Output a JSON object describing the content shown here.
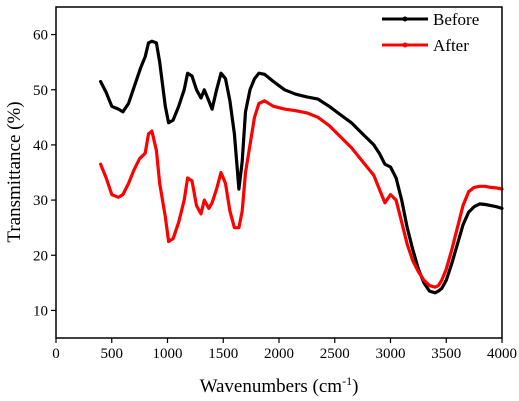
{
  "chart_data": {
    "type": "line",
    "xlabel": "Wavenumbers (cm",
    "xlabel_sup": "-1",
    "xlabel_tail": ")",
    "ylabel": "Transmittance (%)",
    "xlim": [
      0,
      4000
    ],
    "ylim": [
      5,
      65
    ],
    "xticks": [
      0,
      500,
      1000,
      1500,
      2000,
      2500,
      3000,
      3500,
      4000
    ],
    "yticks": [
      10,
      20,
      30,
      40,
      50,
      60
    ],
    "grid": false,
    "legend_position": "top-right",
    "series": [
      {
        "name": "Before",
        "color": "#000000",
        "x": [
          400,
          450,
          500,
          560,
          600,
          650,
          700,
          760,
          800,
          830,
          860,
          900,
          930,
          980,
          1010,
          1050,
          1100,
          1150,
          1180,
          1220,
          1260,
          1300,
          1330,
          1370,
          1400,
          1440,
          1480,
          1520,
          1560,
          1600,
          1640,
          1670,
          1700,
          1740,
          1780,
          1820,
          1870,
          1950,
          2050,
          2150,
          2250,
          2350,
          2450,
          2550,
          2650,
          2750,
          2850,
          2900,
          2950,
          3000,
          3050,
          3100,
          3150,
          3200,
          3250,
          3300,
          3350,
          3400,
          3430,
          3460,
          3500,
          3550,
          3600,
          3650,
          3700,
          3750,
          3800,
          3850,
          3900,
          3950,
          4000
        ],
        "values": [
          51.5,
          49.5,
          47.0,
          46.5,
          46.0,
          47.5,
          50.5,
          54.0,
          56.0,
          58.5,
          58.8,
          58.5,
          55.0,
          47.0,
          44.0,
          44.5,
          47.0,
          50.0,
          53.0,
          52.5,
          50.0,
          48.5,
          50.0,
          48.0,
          46.5,
          50.0,
          53.0,
          52.0,
          48.0,
          42.0,
          32.0,
          37.0,
          46.0,
          50.0,
          52.0,
          53.0,
          52.8,
          51.5,
          50.0,
          49.2,
          48.7,
          48.3,
          47.0,
          45.5,
          44.0,
          42.0,
          40.0,
          38.5,
          36.5,
          36.0,
          34.0,
          30.0,
          25.0,
          21.0,
          17.5,
          15.0,
          13.5,
          13.2,
          13.5,
          14.0,
          15.5,
          18.5,
          22.0,
          25.5,
          27.8,
          28.8,
          29.3,
          29.2,
          29.0,
          28.8,
          28.5
        ]
      },
      {
        "name": "After",
        "color": "#ff0000",
        "x": [
          400,
          450,
          500,
          560,
          600,
          650,
          700,
          750,
          800,
          830,
          860,
          900,
          930,
          980,
          1010,
          1050,
          1100,
          1150,
          1180,
          1220,
          1260,
          1300,
          1330,
          1370,
          1400,
          1440,
          1480,
          1520,
          1560,
          1600,
          1640,
          1670,
          1700,
          1740,
          1780,
          1820,
          1870,
          1950,
          2050,
          2150,
          2250,
          2350,
          2450,
          2550,
          2650,
          2750,
          2850,
          2900,
          2950,
          3000,
          3050,
          3100,
          3150,
          3200,
          3250,
          3300,
          3350,
          3400,
          3430,
          3460,
          3500,
          3550,
          3600,
          3650,
          3700,
          3750,
          3800,
          3850,
          3900,
          3950,
          4000
        ],
        "values": [
          36.5,
          34.0,
          31.0,
          30.5,
          31.0,
          33.0,
          35.5,
          37.5,
          38.5,
          42.0,
          42.5,
          39.0,
          33.0,
          27.0,
          22.5,
          23.0,
          26.0,
          30.0,
          34.0,
          33.5,
          29.0,
          27.5,
          30.0,
          28.5,
          29.5,
          32.0,
          35.0,
          33.0,
          28.0,
          25.0,
          25.0,
          28.0,
          35.0,
          40.0,
          45.0,
          47.5,
          48.0,
          47.0,
          46.5,
          46.2,
          45.8,
          45.0,
          43.5,
          41.5,
          39.5,
          37.0,
          34.5,
          32.0,
          29.5,
          31.0,
          30.0,
          26.0,
          22.0,
          19.0,
          17.0,
          15.5,
          14.5,
          14.2,
          14.5,
          15.5,
          17.5,
          21.0,
          25.0,
          29.0,
          31.5,
          32.3,
          32.5,
          32.5,
          32.3,
          32.2,
          32.0
        ]
      }
    ]
  }
}
